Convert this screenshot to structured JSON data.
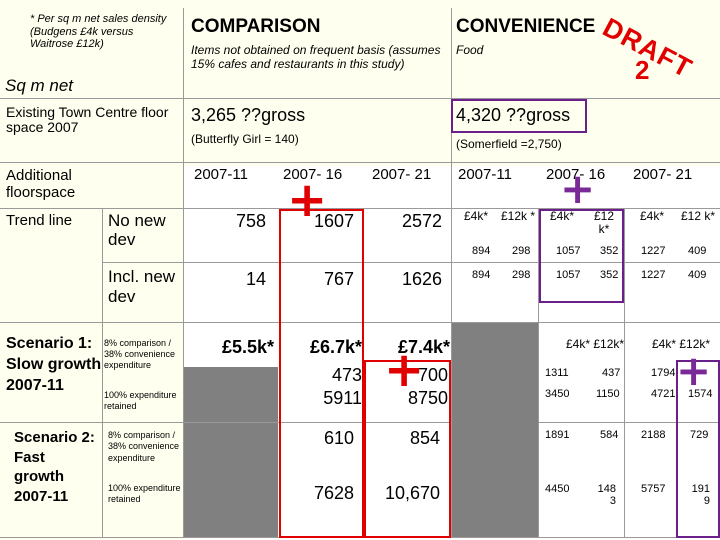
{
  "note": "* Per sq m net sales density (Budgens £4k versus Waitrose £12k)",
  "sq_m_net": "Sq m net",
  "existing_label": "Existing Town Centre floor space 2007",
  "additional_label": "Additional floorspace",
  "trend_label": "Trend line",
  "no_new_dev": "No new dev",
  "incl_new_dev": "Incl. new dev",
  "scenario1_label": "Scenario 1: Slow growth 2007-11",
  "scenario2_label": "Scenario 2: Fast growth 2007-11",
  "sub_83_38": "8% comparison / 38% convenience expenditure",
  "sub_100_s1": "100% expenditure retained",
  "sub_83_38_s2": "8% comparison / 38% convenience expenditure",
  "sub_100_s2": "100% expenditure retained",
  "comparison": {
    "title": "COMPARISON",
    "note": "Items not obtained on frequent basis (assumes 15% cafes and restaurants in this study)",
    "gross": "3,265 ??gross",
    "butterfly": "(Butterfly Girl = 140)",
    "cols": [
      "2007-11",
      "2007- 16",
      "2007- 21"
    ],
    "trend_no_new": [
      "758",
      "1607",
      "2572"
    ],
    "trend_incl": [
      "14",
      "767",
      "1626"
    ],
    "s1_values": [
      "£5.5k*",
      "£6.7k*",
      "£7.4k*"
    ],
    "s1_row2": [
      "473",
      "700"
    ],
    "s1_row3": [
      "5911",
      "8750"
    ],
    "s2_row1": [
      "610",
      "854"
    ],
    "s2_row2": [
      "7628",
      "10,670"
    ]
  },
  "convenience": {
    "title": "CONVENIENCE",
    "food": "Food",
    "gross": "4,320 ??gross",
    "somerfield": "(Somerfield =2,750)",
    "cols": [
      "2007-11",
      "2007- 16",
      "2007- 21"
    ],
    "sub_headers": [
      "£4k*",
      "£12k *",
      "£4k*",
      "£12 k*",
      "£4k*",
      "£12 k*"
    ],
    "trend_no_new": [
      "894",
      "298",
      "1057",
      "352",
      "1227",
      "409"
    ],
    "trend_incl": [
      "894",
      "298",
      "1057",
      "352",
      "1227",
      "409"
    ],
    "s1_head_a": "£4k* £12k*",
    "s1_head_b": "£4k* £12k*",
    "s1_row2": [
      "1311",
      "437",
      "1794"
    ],
    "s1_row3": [
      "3450",
      "1150",
      "4721",
      "1574"
    ],
    "s2_row1": [
      "1891",
      "584",
      "2188",
      "729"
    ],
    "s2_row2": [
      "4450",
      "148 3",
      "5757",
      "191 9"
    ]
  },
  "draft": {
    "line1": "DRAFT",
    "line2": "2"
  },
  "colors": {
    "panel": "#fffff0",
    "red": "#e00000",
    "purple": "#6a1f8a",
    "grey": "#808080"
  }
}
